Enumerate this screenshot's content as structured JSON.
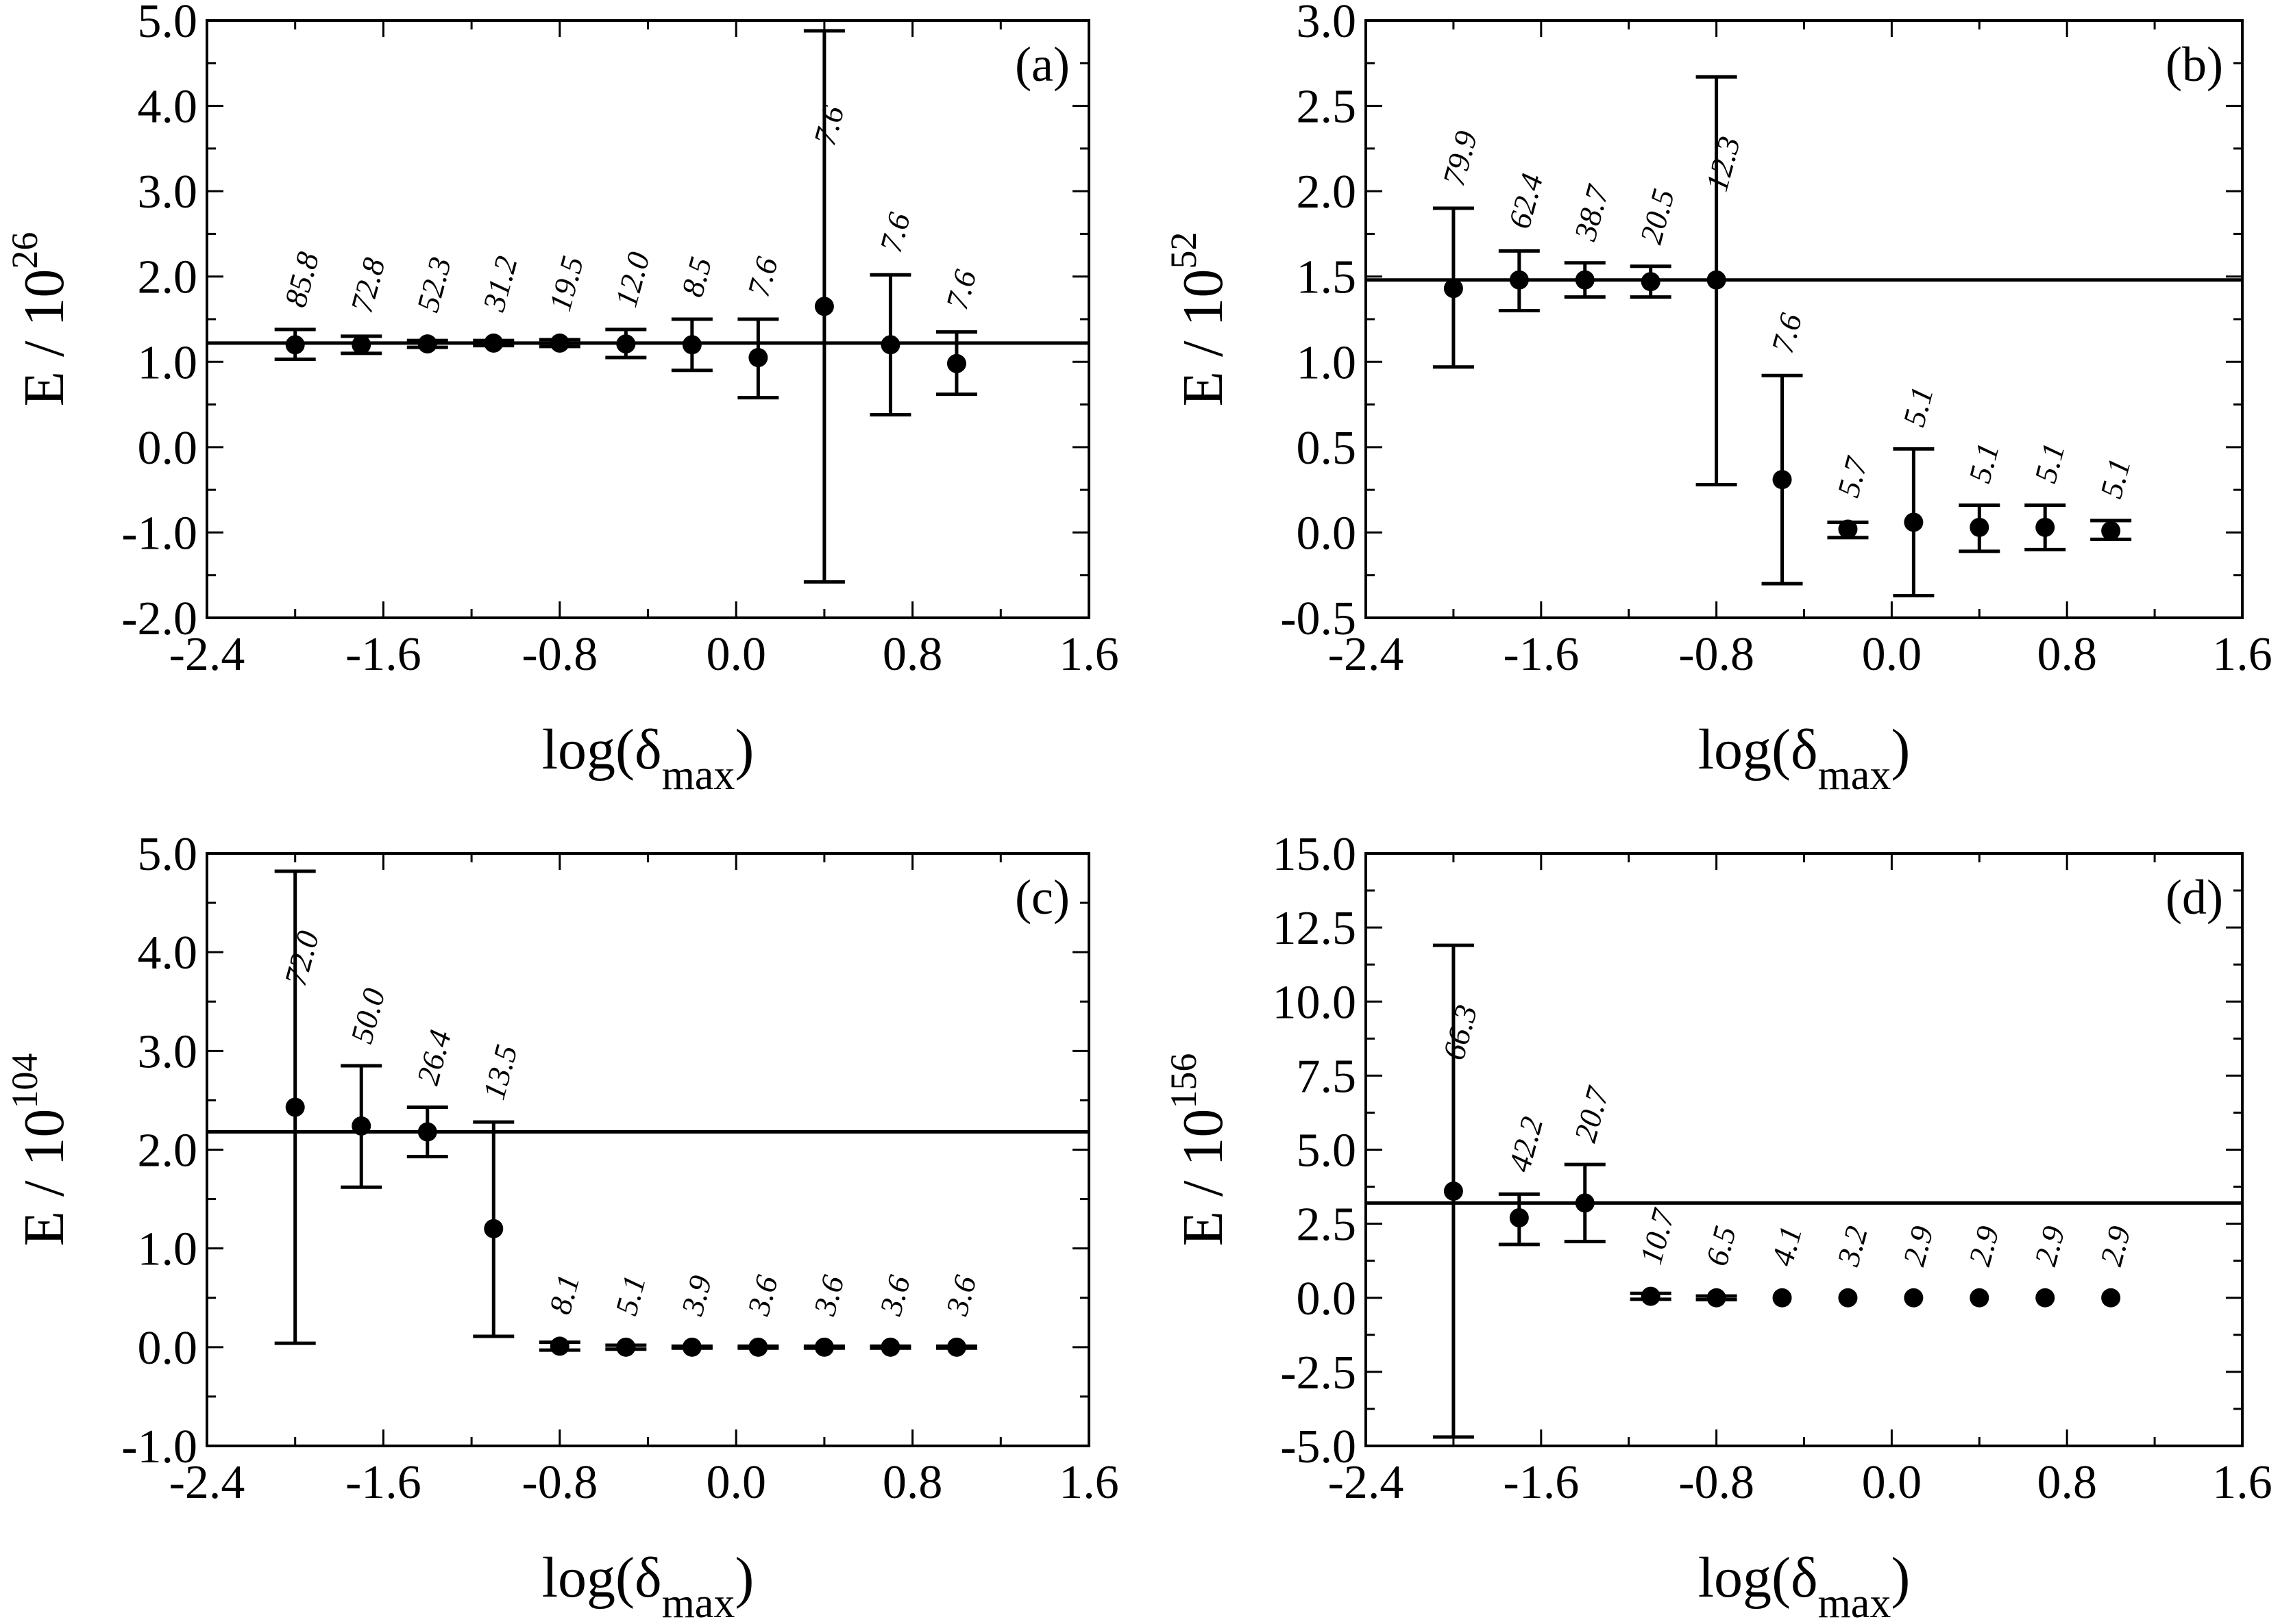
{
  "figure": {
    "colors": {
      "ink": "#000000",
      "background": "#ffffff"
    },
    "x_axis_title_prefix": "log(δ",
    "x_axis_title_sub": "max",
    "x_axis_title_suffix": ")",
    "y_axis_title_prefix": "E / 10"
  },
  "chart_data": [
    {
      "type": "scatter",
      "panel": "(a)",
      "ylabel_exponent": "26",
      "xlim": [
        -2.4,
        1.6
      ],
      "ylim": [
        -2.0,
        5.0
      ],
      "x_ticks": [
        -2.4,
        -1.6,
        -0.8,
        0.0,
        0.8,
        1.6
      ],
      "x_tick_labels": [
        "-2.4",
        "-1.6",
        "-0.8",
        "0.0",
        "0.8",
        "1.6"
      ],
      "y_ticks": [
        -2.0,
        -1.0,
        0.0,
        1.0,
        2.0,
        3.0,
        4.0,
        5.0
      ],
      "y_tick_labels": [
        "-2.0",
        "-1.0",
        "0.0",
        "1.0",
        "2.0",
        "3.0",
        "4.0",
        "5.0"
      ],
      "x_minor_step": 0.4,
      "y_minor_step": 0.5,
      "reference_line": 1.22,
      "points": [
        {
          "x": -2.0,
          "y": 1.2,
          "err_lo": 1.03,
          "err_hi": 1.38,
          "label": "85.8"
        },
        {
          "x": -1.7,
          "y": 1.2,
          "err_lo": 1.1,
          "err_hi": 1.3,
          "label": "72.8"
        },
        {
          "x": -1.4,
          "y": 1.21,
          "err_lo": 1.17,
          "err_hi": 1.25,
          "label": "52.3"
        },
        {
          "x": -1.1,
          "y": 1.22,
          "err_lo": 1.19,
          "err_hi": 1.25,
          "label": "31.2"
        },
        {
          "x": -0.8,
          "y": 1.22,
          "err_lo": 1.18,
          "err_hi": 1.26,
          "label": "19.5"
        },
        {
          "x": -0.5,
          "y": 1.21,
          "err_lo": 1.05,
          "err_hi": 1.38,
          "label": "12.0"
        },
        {
          "x": -0.2,
          "y": 1.2,
          "err_lo": 0.9,
          "err_hi": 1.5,
          "label": "8.5"
        },
        {
          "x": 0.1,
          "y": 1.05,
          "err_lo": 0.58,
          "err_hi": 1.5,
          "label": "7.6"
        },
        {
          "x": 0.4,
          "y": 1.65,
          "err_lo": -1.58,
          "err_hi": 4.88,
          "label": "7.6"
        },
        {
          "x": 0.7,
          "y": 1.2,
          "err_lo": 0.38,
          "err_hi": 2.02,
          "label": "7.6"
        },
        {
          "x": 1.0,
          "y": 0.98,
          "err_lo": 0.62,
          "err_hi": 1.35,
          "label": "7.6"
        }
      ]
    },
    {
      "type": "scatter",
      "panel": "(b)",
      "ylabel_exponent": "52",
      "xlim": [
        -2.4,
        1.6
      ],
      "ylim": [
        -0.5,
        3.0
      ],
      "x_ticks": [
        -2.4,
        -1.6,
        -0.8,
        0.0,
        0.8,
        1.6
      ],
      "x_tick_labels": [
        "-2.4",
        "-1.6",
        "-0.8",
        "0.0",
        "0.8",
        "1.6"
      ],
      "y_ticks": [
        -0.5,
        0.0,
        0.5,
        1.0,
        1.5,
        2.0,
        2.5,
        3.0
      ],
      "y_tick_labels": [
        "-0.5",
        "0.0",
        "0.5",
        "1.0",
        "1.5",
        "2.0",
        "2.5",
        "3.0"
      ],
      "x_minor_step": 0.4,
      "y_minor_step": 0.25,
      "reference_line": 1.48,
      "points": [
        {
          "x": -2.0,
          "y": 1.43,
          "err_lo": 0.97,
          "err_hi": 1.9,
          "label": "79.9"
        },
        {
          "x": -1.7,
          "y": 1.48,
          "err_lo": 1.3,
          "err_hi": 1.65,
          "label": "62.4"
        },
        {
          "x": -1.4,
          "y": 1.48,
          "err_lo": 1.38,
          "err_hi": 1.58,
          "label": "38.7"
        },
        {
          "x": -1.1,
          "y": 1.47,
          "err_lo": 1.38,
          "err_hi": 1.56,
          "label": "20.5"
        },
        {
          "x": -0.8,
          "y": 1.48,
          "err_lo": 0.28,
          "err_hi": 2.67,
          "label": "12.3"
        },
        {
          "x": -0.5,
          "y": 0.31,
          "err_lo": -0.3,
          "err_hi": 0.92,
          "label": "7.6"
        },
        {
          "x": -0.2,
          "y": 0.02,
          "err_lo": -0.03,
          "err_hi": 0.06,
          "label": "5.7"
        },
        {
          "x": 0.1,
          "y": 0.06,
          "err_lo": -0.37,
          "err_hi": 0.49,
          "label": "5.1"
        },
        {
          "x": 0.4,
          "y": 0.03,
          "err_lo": -0.11,
          "err_hi": 0.16,
          "label": "5.1"
        },
        {
          "x": 0.7,
          "y": 0.03,
          "err_lo": -0.1,
          "err_hi": 0.16,
          "label": "5.1"
        },
        {
          "x": 1.0,
          "y": 0.01,
          "err_lo": -0.04,
          "err_hi": 0.07,
          "label": "5.1"
        }
      ]
    },
    {
      "type": "scatter",
      "panel": "(c)",
      "ylabel_exponent": "104",
      "xlim": [
        -2.4,
        1.6
      ],
      "ylim": [
        -1.0,
        5.0
      ],
      "x_ticks": [
        -2.4,
        -1.6,
        -0.8,
        0.0,
        0.8,
        1.6
      ],
      "x_tick_labels": [
        "-2.4",
        "-1.6",
        "-0.8",
        "0.0",
        "0.8",
        "1.6"
      ],
      "y_ticks": [
        -1.0,
        0.0,
        1.0,
        2.0,
        3.0,
        4.0,
        5.0
      ],
      "y_tick_labels": [
        "-1.0",
        "0.0",
        "1.0",
        "2.0",
        "3.0",
        "4.0",
        "5.0"
      ],
      "x_minor_step": 0.4,
      "y_minor_step": 0.5,
      "reference_line": 2.18,
      "points": [
        {
          "x": -2.0,
          "y": 2.43,
          "err_lo": 0.04,
          "err_hi": 4.82,
          "label": "72.0"
        },
        {
          "x": -1.7,
          "y": 2.24,
          "err_lo": 1.62,
          "err_hi": 2.85,
          "label": "50.0"
        },
        {
          "x": -1.4,
          "y": 2.18,
          "err_lo": 1.93,
          "err_hi": 2.43,
          "label": "26.4"
        },
        {
          "x": -1.1,
          "y": 1.2,
          "err_lo": 0.11,
          "err_hi": 2.28,
          "label": "13.5"
        },
        {
          "x": -0.8,
          "y": 0.01,
          "err_lo": -0.03,
          "err_hi": 0.05,
          "label": "8.1"
        },
        {
          "x": -0.5,
          "y": 0.0,
          "err_lo": -0.02,
          "err_hi": 0.02,
          "label": "5.1"
        },
        {
          "x": -0.2,
          "y": 0.0,
          "err_lo": -0.01,
          "err_hi": 0.01,
          "label": "3.9"
        },
        {
          "x": 0.1,
          "y": 0.0,
          "err_lo": -0.01,
          "err_hi": 0.01,
          "label": "3.6"
        },
        {
          "x": 0.4,
          "y": 0.0,
          "err_lo": -0.01,
          "err_hi": 0.01,
          "label": "3.6"
        },
        {
          "x": 0.7,
          "y": 0.0,
          "err_lo": -0.01,
          "err_hi": 0.01,
          "label": "3.6"
        },
        {
          "x": 1.0,
          "y": 0.0,
          "err_lo": -0.01,
          "err_hi": 0.01,
          "label": "3.6"
        }
      ]
    },
    {
      "type": "scatter",
      "panel": "(d)",
      "ylabel_exponent": "156",
      "xlim": [
        -2.4,
        1.6
      ],
      "ylim": [
        -5.0,
        15.0
      ],
      "x_ticks": [
        -2.4,
        -1.6,
        -0.8,
        0.0,
        0.8,
        1.6
      ],
      "x_tick_labels": [
        "-2.4",
        "-1.6",
        "-0.8",
        "0.0",
        "0.8",
        "1.6"
      ],
      "y_ticks": [
        -5.0,
        -2.5,
        0.0,
        2.5,
        5.0,
        7.5,
        10.0,
        12.5,
        15.0
      ],
      "y_tick_labels": [
        "-5.0",
        "-2.5",
        "0.0",
        "2.5",
        "5.0",
        "7.5",
        "10.0",
        "12.5",
        "15.0"
      ],
      "x_minor_step": 0.4,
      "y_minor_step": 1.25,
      "reference_line": 3.2,
      "points": [
        {
          "x": -2.0,
          "y": 3.6,
          "err_lo": -4.7,
          "err_hi": 11.9,
          "label": "66.3"
        },
        {
          "x": -1.7,
          "y": 2.7,
          "err_lo": 1.8,
          "err_hi": 3.5,
          "label": "42.2"
        },
        {
          "x": -1.4,
          "y": 3.2,
          "err_lo": 1.9,
          "err_hi": 4.5,
          "label": "20.7"
        },
        {
          "x": -1.1,
          "y": 0.05,
          "err_lo": -0.05,
          "err_hi": 0.15,
          "label": "10.7"
        },
        {
          "x": -0.8,
          "y": 0.0,
          "err_lo": -0.06,
          "err_hi": 0.06,
          "label": "6.5"
        },
        {
          "x": -0.5,
          "y": 0.0,
          "err_lo": 0.0,
          "err_hi": 0.0,
          "label": "4.1"
        },
        {
          "x": -0.2,
          "y": 0.0,
          "err_lo": 0.0,
          "err_hi": 0.0,
          "label": "3.2"
        },
        {
          "x": 0.1,
          "y": 0.0,
          "err_lo": 0.0,
          "err_hi": 0.0,
          "label": "2.9"
        },
        {
          "x": 0.4,
          "y": 0.0,
          "err_lo": 0.0,
          "err_hi": 0.0,
          "label": "2.9"
        },
        {
          "x": 0.7,
          "y": 0.0,
          "err_lo": 0.0,
          "err_hi": 0.0,
          "label": "2.9"
        },
        {
          "x": 1.0,
          "y": 0.0,
          "err_lo": 0.0,
          "err_hi": 0.0,
          "label": "2.9"
        }
      ]
    }
  ]
}
